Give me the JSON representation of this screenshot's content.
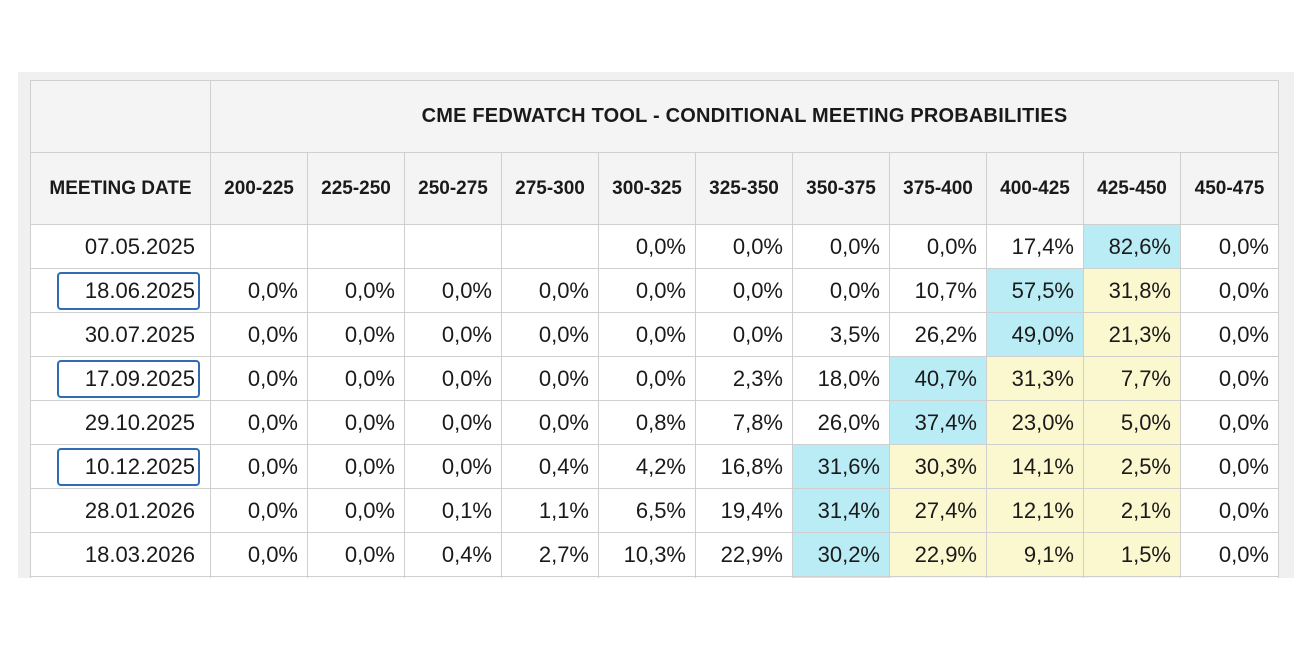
{
  "title": "CME FEDWATCH TOOL - CONDITIONAL MEETING PROBABILITIES",
  "date_header": "MEETING DATE",
  "columns": [
    "200-225",
    "225-250",
    "250-275",
    "275-300",
    "300-325",
    "325-350",
    "350-375",
    "375-400",
    "400-425",
    "425-450",
    "450-475"
  ],
  "colors": {
    "highlight_max": "#b9ecf5",
    "highlight_second": "#fbf7cf",
    "date_box_border": "#2e6db4"
  },
  "rows": [
    {
      "date": "07.05.2025",
      "boxed": false,
      "values": [
        "",
        "",
        "",
        "",
        "0,0%",
        "0,0%",
        "0,0%",
        "0,0%",
        "17,4%",
        "82,6%",
        "0,0%"
      ],
      "cyan": [
        9
      ],
      "yellow": []
    },
    {
      "date": "18.06.2025",
      "boxed": true,
      "values": [
        "0,0%",
        "0,0%",
        "0,0%",
        "0,0%",
        "0,0%",
        "0,0%",
        "0,0%",
        "10,7%",
        "57,5%",
        "31,8%",
        "0,0%"
      ],
      "cyan": [
        8
      ],
      "yellow": [
        9
      ]
    },
    {
      "date": "30.07.2025",
      "boxed": false,
      "values": [
        "0,0%",
        "0,0%",
        "0,0%",
        "0,0%",
        "0,0%",
        "0,0%",
        "3,5%",
        "26,2%",
        "49,0%",
        "21,3%",
        "0,0%"
      ],
      "cyan": [
        8
      ],
      "yellow": [
        9
      ]
    },
    {
      "date": "17.09.2025",
      "boxed": true,
      "values": [
        "0,0%",
        "0,0%",
        "0,0%",
        "0,0%",
        "0,0%",
        "2,3%",
        "18,0%",
        "40,7%",
        "31,3%",
        "7,7%",
        "0,0%"
      ],
      "cyan": [
        7
      ],
      "yellow": [
        8,
        9
      ]
    },
    {
      "date": "29.10.2025",
      "boxed": false,
      "values": [
        "0,0%",
        "0,0%",
        "0,0%",
        "0,0%",
        "0,8%",
        "7,8%",
        "26,0%",
        "37,4%",
        "23,0%",
        "5,0%",
        "0,0%"
      ],
      "cyan": [
        7
      ],
      "yellow": [
        8,
        9
      ]
    },
    {
      "date": "10.12.2025",
      "boxed": true,
      "values": [
        "0,0%",
        "0,0%",
        "0,0%",
        "0,4%",
        "4,2%",
        "16,8%",
        "31,6%",
        "30,3%",
        "14,1%",
        "2,5%",
        "0,0%"
      ],
      "cyan": [
        6
      ],
      "yellow": [
        7,
        8,
        9
      ]
    },
    {
      "date": "28.01.2026",
      "boxed": false,
      "values": [
        "0,0%",
        "0,0%",
        "0,1%",
        "1,1%",
        "6,5%",
        "19,4%",
        "31,4%",
        "27,4%",
        "12,1%",
        "2,1%",
        "0,0%"
      ],
      "cyan": [
        6
      ],
      "yellow": [
        7,
        8,
        9
      ]
    },
    {
      "date": "18.03.2026",
      "boxed": false,
      "values": [
        "0,0%",
        "0,0%",
        "0,4%",
        "2,7%",
        "10,3%",
        "22,9%",
        "30,2%",
        "22,9%",
        "9,1%",
        "1,5%",
        "0,0%"
      ],
      "cyan": [
        6
      ],
      "yellow": [
        7,
        8,
        9
      ]
    }
  ],
  "partial_row": {
    "cyan": [
      6
    ],
    "yellow": [
      7,
      8,
      9
    ]
  }
}
